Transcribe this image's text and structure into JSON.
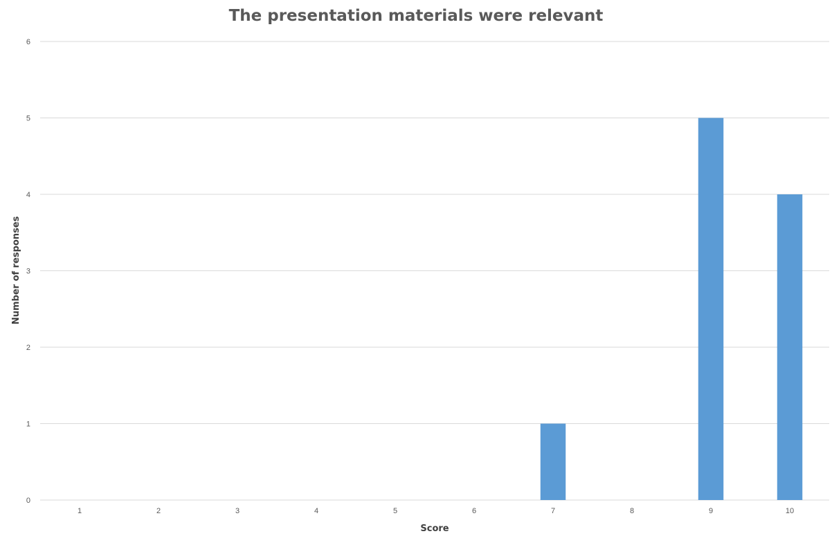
{
  "chart_data": {
    "type": "bar",
    "title": "The presentation materials were relevant",
    "xlabel": "Score",
    "ylabel": "Number of responses",
    "categories": [
      "1",
      "2",
      "3",
      "4",
      "5",
      "6",
      "7",
      "8",
      "9",
      "10"
    ],
    "values": [
      0,
      0,
      0,
      0,
      0,
      0,
      1,
      0,
      5,
      4
    ],
    "ylim": [
      0,
      6
    ],
    "yticks": [
      "0",
      "1",
      "2",
      "3",
      "4",
      "5",
      "6"
    ],
    "grid": true,
    "legend": "none",
    "colors": {
      "bar": "#5B9BD5",
      "grid": "#D9D9D9",
      "text": "#595959"
    }
  }
}
